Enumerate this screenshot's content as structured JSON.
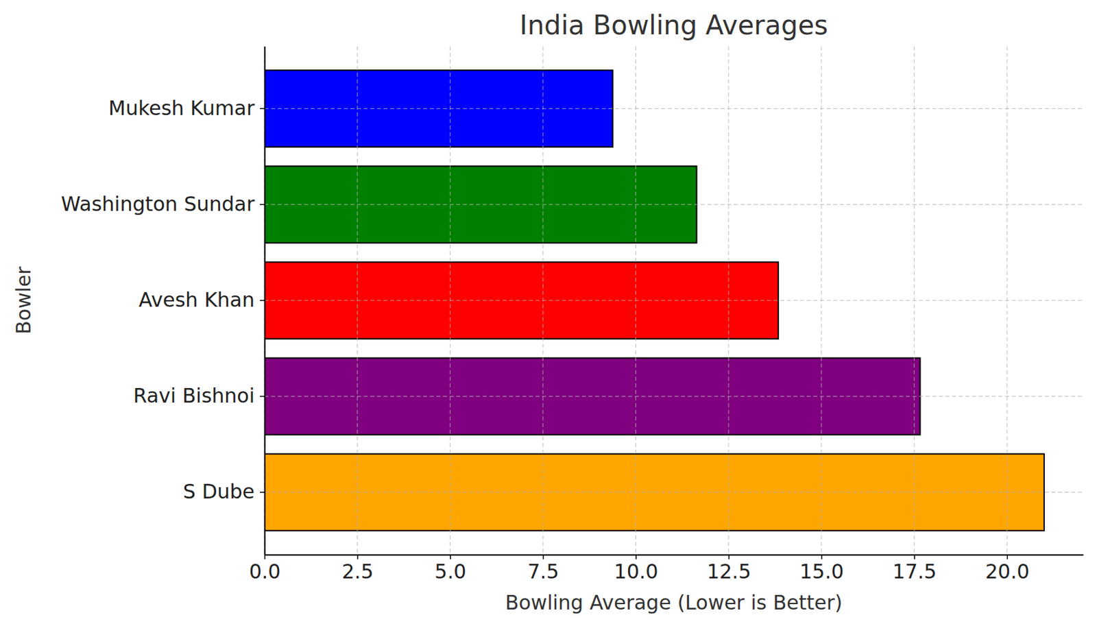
{
  "chart_data": {
    "type": "bar",
    "orientation": "horizontal",
    "title": "India Bowling Averages",
    "x_label": "Bowling Average (Lower is Better)",
    "y_label": "Bowler",
    "categories": [
      "Mukesh Kumar",
      "Washington Sundar",
      "Avesh Khan",
      "Ravi Bishnoi",
      "S Dube"
    ],
    "values": [
      9.38,
      11.64,
      13.84,
      17.66,
      21.0
    ],
    "colors": [
      "#0000ff",
      "#008000",
      "#ff0000",
      "#800080",
      "#ffa500"
    ],
    "xlim": [
      0,
      22.05
    ],
    "xticks": [
      {
        "value": 0,
        "label": "0.0"
      },
      2.5,
      {
        "value": 5,
        "label": "5.0"
      },
      7.5,
      {
        "value": 10,
        "label": "10.0"
      },
      12.5,
      {
        "value": 15,
        "label": "15.0"
      },
      17.5,
      {
        "value": 20,
        "label": "20.0"
      }
    ],
    "grid": true
  }
}
